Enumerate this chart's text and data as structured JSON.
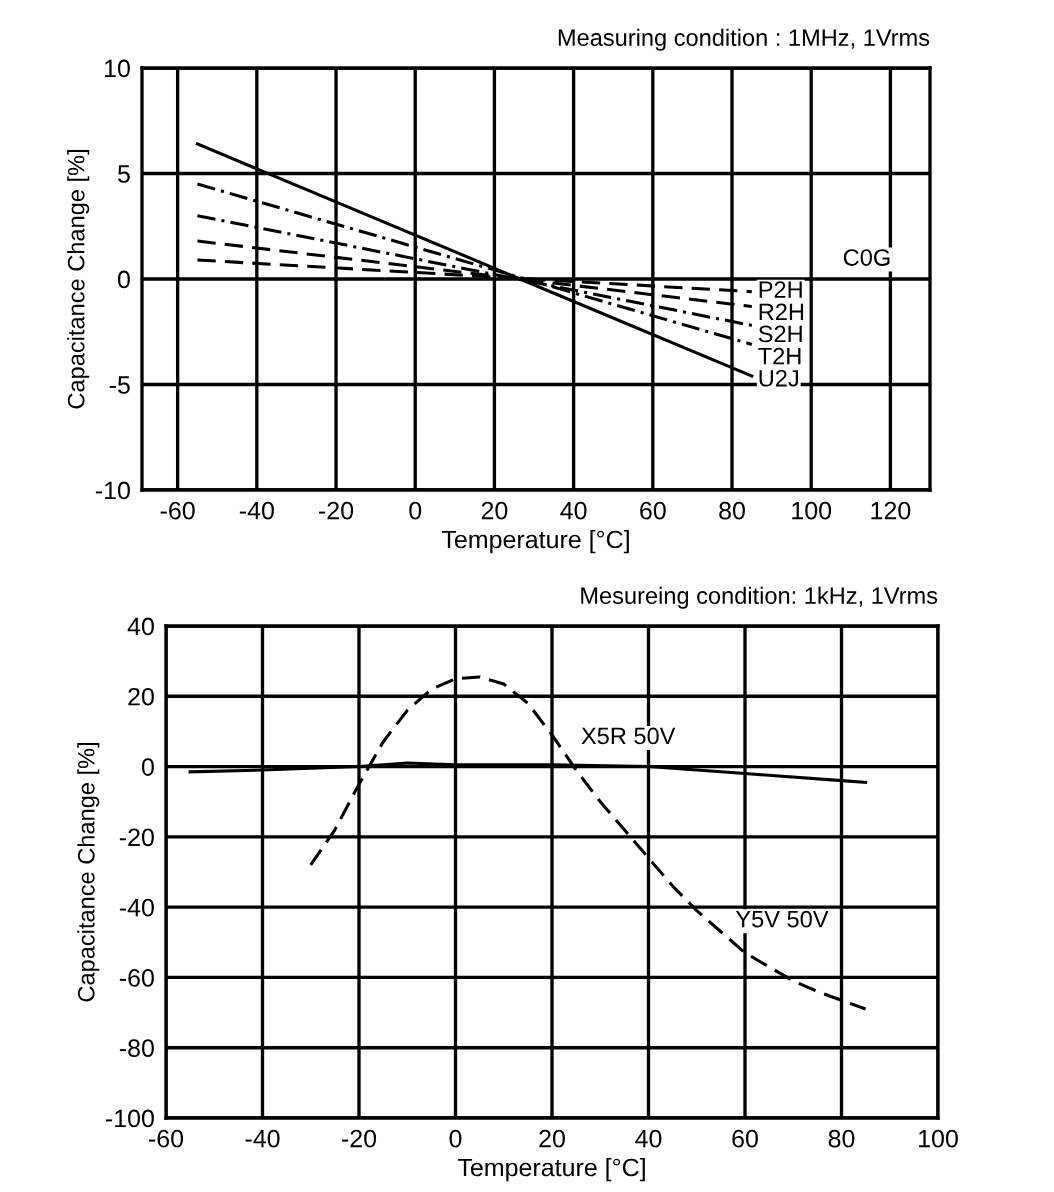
{
  "chart_data": [
    {
      "type": "line",
      "title": "Measuring condition : 1MHz, 1Vrms",
      "xlabel": "Temperature [°C]",
      "ylabel": "Capacitance Change [%]",
      "xlim": [
        -69,
        130
      ],
      "xticks": [
        -60,
        -40,
        -20,
        0,
        20,
        40,
        60,
        80,
        100,
        120
      ],
      "ylim": [
        -10,
        10
      ],
      "yticks": [
        -10,
        -5,
        0,
        5,
        10
      ],
      "grid": true,
      "annotations": [
        "C0G"
      ],
      "series": [
        {
          "name": "P2H",
          "color": "#000000",
          "line_style": "dashed",
          "x": [
            -55,
            85
          ],
          "values": [
            0.9,
            -0.6
          ]
        },
        {
          "name": "R2H",
          "color": "#000000",
          "line_style": "dashed",
          "x": [
            -55,
            85
          ],
          "values": [
            1.8,
            -1.3
          ]
        },
        {
          "name": "S2H",
          "color": "#000000",
          "line_style": "dotted",
          "x": [
            -55,
            85
          ],
          "values": [
            3.0,
            -2.2
          ]
        },
        {
          "name": "T2H",
          "color": "#000000",
          "line_style": "dotted",
          "x": [
            -55,
            85
          ],
          "values": [
            4.5,
            -3.1
          ]
        },
        {
          "name": "U2J",
          "color": "#000000",
          "line_style": "solid",
          "x": [
            -55,
            85
          ],
          "values": [
            6.4,
            -4.6
          ]
        }
      ]
    },
    {
      "type": "line",
      "title": "Mesureing condition: 1kHz, 1Vrms",
      "xlabel": "Temperature [°C]",
      "ylabel": "Capacitance Change [%]",
      "xlim": [
        -60,
        100
      ],
      "xticks": [
        -60,
        -40,
        -20,
        0,
        20,
        40,
        60,
        80,
        100
      ],
      "ylim": [
        -100,
        40
      ],
      "yticks": [
        -100,
        -80,
        -60,
        -40,
        -20,
        0,
        20,
        40
      ],
      "grid": true,
      "series": [
        {
          "name": "X5R 50V",
          "color": "#000000",
          "line_style": "solid",
          "x": [
            -55,
            -40,
            -20,
            -10,
            0,
            20,
            40,
            60,
            80,
            85
          ],
          "values": [
            -1.5,
            -1,
            0,
            1,
            0.5,
            0.5,
            0,
            -2,
            -4,
            -4.5
          ]
        },
        {
          "name": "Y5V 50V",
          "color": "#000000",
          "line_style": "dashed",
          "x": [
            -30,
            -25,
            -20,
            -15,
            -10,
            -5,
            0,
            5,
            10,
            15,
            20,
            25,
            30,
            35,
            40,
            45,
            50,
            55,
            60,
            65,
            70,
            75,
            80,
            85
          ],
          "values": [
            -28,
            -18,
            -5,
            7,
            16,
            22,
            25,
            25.5,
            23.5,
            18,
            9,
            -1,
            -10,
            -18,
            -26,
            -34,
            -41,
            -47,
            -53,
            -57,
            -61,
            -64,
            -66.5,
            -69
          ]
        }
      ]
    }
  ]
}
